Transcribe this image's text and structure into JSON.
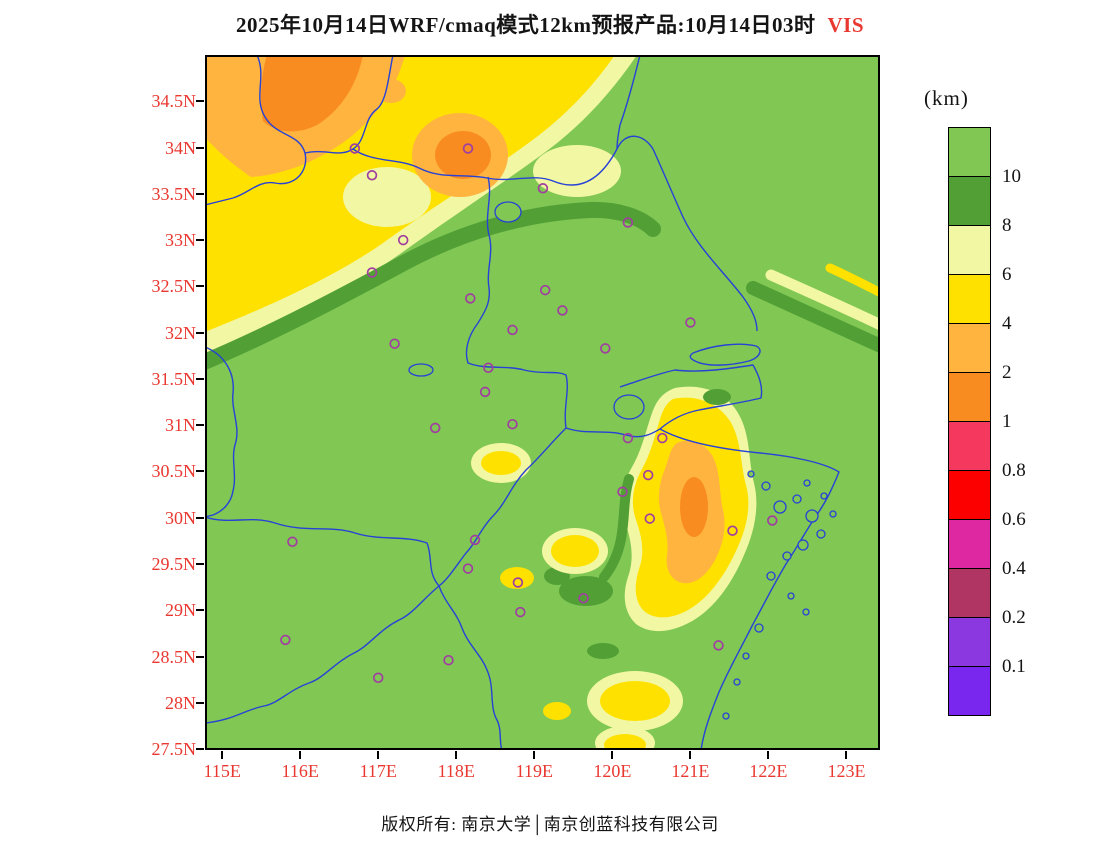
{
  "title": {
    "main": "2025年10月14日WRF/cmaq模式12km预报产品:10月14日03时",
    "highlight": "VIS"
  },
  "footer": {
    "copyright": "版权所有: 南京大学│南京创蓝科技有限公司"
  },
  "legend": {
    "unit": "(km)",
    "blocks": [
      {
        "color": "#80C754",
        "label": "10"
      },
      {
        "color": "#52A035",
        "label": "8"
      },
      {
        "color": "#F2F7A3",
        "label": "6"
      },
      {
        "color": "#FFE100",
        "label": "4"
      },
      {
        "color": "#FFB440",
        "label": "2"
      },
      {
        "color": "#F98C20",
        "label": "1"
      },
      {
        "color": "#F4385E",
        "label": "0.8"
      },
      {
        "color": "#FC0000",
        "label": "0.6"
      },
      {
        "color": "#DD28A2",
        "label": "0.4"
      },
      {
        "color": "#B03563",
        "label": "0.2"
      },
      {
        "color": "#8C38E0",
        "label": "0.1"
      },
      {
        "color": "#7926EE",
        "label": ""
      }
    ]
  },
  "axes": {
    "extent": {
      "lon_min": 114.78,
      "lon_max": 123.43,
      "lat_min": 27.49,
      "lat_max": 35.0
    },
    "lat_ticks": [
      {
        "label": "34.5N",
        "value": 34.5
      },
      {
        "label": "34N",
        "value": 34.0
      },
      {
        "label": "33.5N",
        "value": 33.5
      },
      {
        "label": "33N",
        "value": 33.0
      },
      {
        "label": "32.5N",
        "value": 32.5
      },
      {
        "label": "32N",
        "value": 32.0
      },
      {
        "label": "31.5N",
        "value": 31.5
      },
      {
        "label": "31N",
        "value": 31.0
      },
      {
        "label": "30.5N",
        "value": 30.5
      },
      {
        "label": "30N",
        "value": 30.0
      },
      {
        "label": "29.5N",
        "value": 29.5
      },
      {
        "label": "29N",
        "value": 29.0
      },
      {
        "label": "28.5N",
        "value": 28.5
      },
      {
        "label": "28N",
        "value": 28.0
      },
      {
        "label": "27.5N",
        "value": 27.5
      }
    ],
    "lon_ticks": [
      {
        "label": "115E",
        "value": 115
      },
      {
        "label": "116E",
        "value": 116
      },
      {
        "label": "117E",
        "value": 117
      },
      {
        "label": "118E",
        "value": 118
      },
      {
        "label": "119E",
        "value": 119
      },
      {
        "label": "120E",
        "value": 120
      },
      {
        "label": "121E",
        "value": 121
      },
      {
        "label": "122E",
        "value": 122
      },
      {
        "label": "123E",
        "value": 123
      }
    ]
  },
  "stations": [
    [
      116.7,
      33.99
    ],
    [
      116.92,
      33.7
    ],
    [
      118.15,
      33.99
    ],
    [
      119.11,
      33.56
    ],
    [
      120.2,
      33.19
    ],
    [
      117.32,
      33.0
    ],
    [
      116.92,
      32.65
    ],
    [
      118.18,
      32.37
    ],
    [
      119.14,
      32.46
    ],
    [
      119.36,
      32.24
    ],
    [
      118.72,
      32.03
    ],
    [
      121.0,
      32.11
    ],
    [
      117.21,
      31.88
    ],
    [
      119.91,
      31.83
    ],
    [
      118.41,
      31.62
    ],
    [
      118.37,
      31.36
    ],
    [
      117.73,
      30.97
    ],
    [
      118.72,
      31.01
    ],
    [
      120.2,
      30.86
    ],
    [
      120.64,
      30.86
    ],
    [
      120.46,
      30.46
    ],
    [
      120.13,
      30.28
    ],
    [
      120.48,
      29.99
    ],
    [
      121.54,
      29.86
    ],
    [
      122.05,
      29.97
    ],
    [
      115.9,
      29.74
    ],
    [
      118.24,
      29.76
    ],
    [
      118.15,
      29.45
    ],
    [
      118.79,
      29.3
    ],
    [
      119.63,
      29.13
    ],
    [
      118.82,
      28.98
    ],
    [
      115.81,
      28.68
    ],
    [
      117.9,
      28.46
    ],
    [
      117.0,
      28.27
    ],
    [
      121.36,
      28.62
    ]
  ],
  "colors": {
    "map_green": "#80C754",
    "dark_green": "#52A035",
    "pale_yellow": "#F2F7A3",
    "yellow": "#FFE100",
    "amber": "#FFB440",
    "orange": "#F98C20",
    "rose": "#F4385E",
    "red": "#FC0000",
    "magenta": "#DD28A2",
    "dark_rose": "#B03563",
    "violet": "#8C38E0",
    "violet2": "#7926EE",
    "boundary_blue": "#2742D6",
    "station_purple": "#A13FA1",
    "axis_red": "#E93830",
    "text_black": "#141414"
  },
  "chart_data": {
    "type": "heatmap",
    "title": "2025年10月14日WRF/cmaq模式12km预报产品:10月14日03时 VIS",
    "variable": "VIS",
    "unit": "km",
    "levels": [
      0.1,
      0.2,
      0.4,
      0.6,
      0.8,
      1,
      2,
      4,
      6,
      8,
      10
    ],
    "lon_range": [
      114.78,
      123.43
    ],
    "lat_range": [
      27.49,
      35.0
    ],
    "legend_position": "right",
    "summary": "Visibility mostly >10km (green); 2-8km band over northwest (Huaibei/Shandong border area) with 1-2km cores; 2-6km pocket near 121E/30.5N (Hangzhou Bay south); small 4-6km patches in south"
  }
}
